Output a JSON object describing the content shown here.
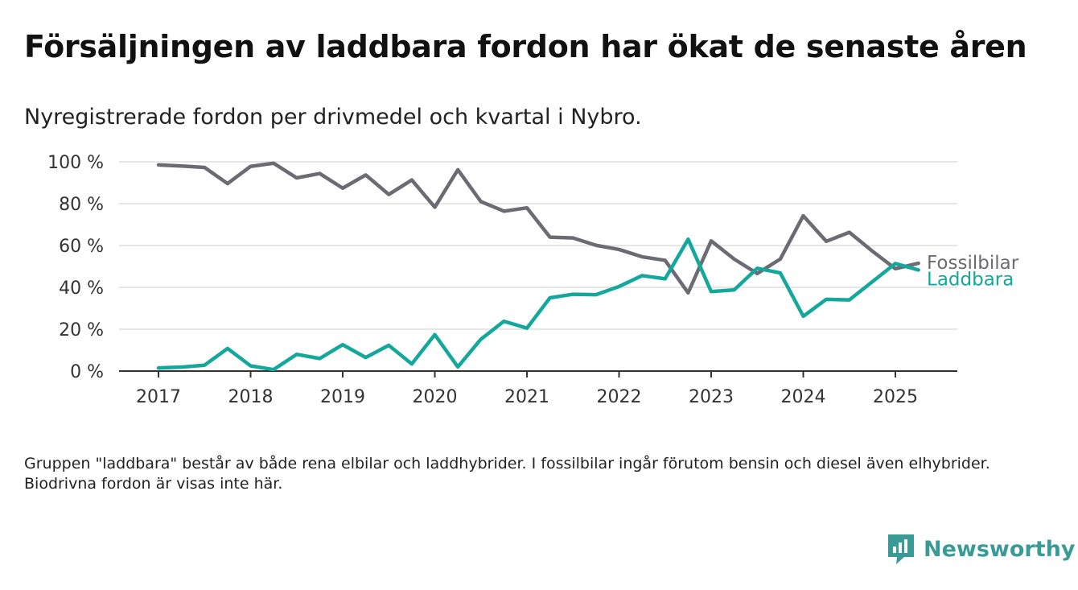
{
  "title": "Försäljningen av laddbara fordon har ökat de senaste åren",
  "subtitle": "Nyregistrerade fordon per drivmedel och kvartal i Nybro.",
  "note": "Gruppen \"laddbara\" består av både rena elbilar och laddhybrider. I fossilbilar ingår förutom bensin och diesel även elhybrider. Biodrivna fordon är visas inte här.",
  "brand": {
    "name": "Newsworthy",
    "icon": "newsworthy-logo-icon",
    "color": "#3a9b96"
  },
  "colors": {
    "fossil": "#6c6b73",
    "laddbara": "#13a89b",
    "grid": "#dddddd",
    "axis": "#333333"
  },
  "chart_data": {
    "type": "line",
    "ylim": [
      0,
      100
    ],
    "yticks": [
      0,
      20,
      40,
      60,
      80,
      100
    ],
    "ytick_labels": [
      "0 %",
      "20 %",
      "40 %",
      "60 %",
      "80 %",
      "100 %"
    ],
    "xlim": [
      2017,
      2025.65
    ],
    "xticks": [
      2017,
      2018,
      2019,
      2020,
      2021,
      2022,
      2023,
      2024,
      2025
    ],
    "xtick_labels": [
      "2017",
      "2018",
      "2019",
      "2020",
      "2021",
      "2022",
      "2023",
      "2024",
      "2025"
    ],
    "x": [
      "2017 Q1",
      "2017 Q2",
      "2017 Q3",
      "2017 Q4",
      "2018 Q1",
      "2018 Q2",
      "2018 Q3",
      "2018 Q4",
      "2019 Q1",
      "2019 Q2",
      "2019 Q3",
      "2019 Q4",
      "2020 Q1",
      "2020 Q2",
      "2020 Q3",
      "2020 Q4",
      "2021 Q1",
      "2021 Q2",
      "2021 Q3",
      "2021 Q4",
      "2022 Q1",
      "2022 Q2",
      "2022 Q3",
      "2022 Q4",
      "2023 Q1",
      "2023 Q2",
      "2023 Q3",
      "2023 Q4",
      "2024 Q1",
      "2024 Q2",
      "2024 Q3",
      "2024 Q4",
      "2025 Q1",
      "2025 Q2"
    ],
    "grid": true,
    "series": [
      {
        "name": "Fossilbilar",
        "key": "fossil",
        "values": [
          98.5,
          98,
          97.3,
          89.6,
          97.8,
          99.3,
          92.3,
          94.4,
          87.4,
          93.7,
          84.4,
          91.3,
          78.3,
          96.2,
          81,
          76.4,
          78,
          64,
          63.6,
          60.1,
          58.1,
          54.6,
          52.9,
          37.4,
          62.2,
          53.5,
          46.6,
          53.5,
          74.2,
          62,
          66.3,
          57.3,
          48.9,
          51.5
        ]
      },
      {
        "name": "Laddbara",
        "key": "laddbara",
        "values": [
          1.5,
          1.9,
          2.8,
          10.8,
          2.5,
          0.7,
          8,
          6,
          12.6,
          6.5,
          12.3,
          3.4,
          17.4,
          2,
          15.2,
          23.8,
          20.5,
          35,
          36.7,
          36.5,
          40.4,
          45.6,
          44.1,
          63,
          38,
          38.8,
          49.1,
          46.9,
          26.2,
          34.3,
          34,
          42.7,
          51.4,
          48.3
        ]
      }
    ]
  }
}
